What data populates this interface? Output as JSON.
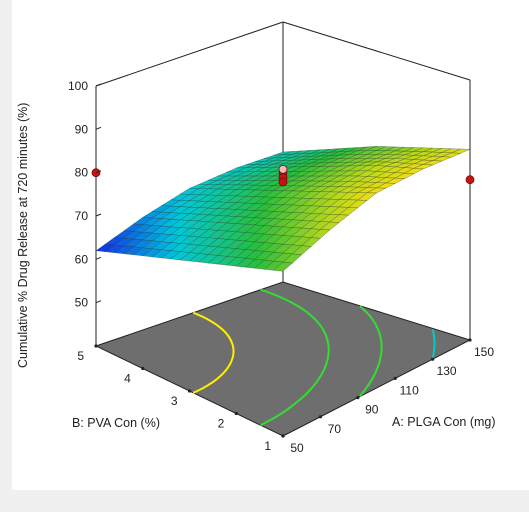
{
  "chart_data": {
    "type": "surface3d",
    "z_axis": {
      "label": "Cumulative % Drug Release at 720 minutes  (%)",
      "ticks": [
        "50",
        "60",
        "70",
        "80",
        "90",
        "100"
      ],
      "range": [
        40,
        100
      ]
    },
    "x_axis": {
      "label": "A: PLGA Con (mg)",
      "ticks": [
        "50",
        "70",
        "90",
        "110",
        "130",
        "150"
      ],
      "range": [
        50,
        150
      ]
    },
    "y_axis": {
      "label": "B: PVA Con (%)",
      "ticks": [
        "1",
        "2",
        "3",
        "4",
        "5"
      ],
      "range": [
        1,
        5
      ]
    },
    "surface_grid": {
      "x": [
        50,
        75,
        100,
        125,
        150
      ],
      "y": [
        1,
        2,
        3,
        4,
        5
      ],
      "z": [
        [
          78,
          82,
          85,
          85,
          84
        ],
        [
          74,
          78,
          81,
          82,
          81
        ],
        [
          70,
          74,
          77,
          78,
          78
        ],
        [
          66,
          70,
          73,
          74,
          74
        ],
        [
          62,
          66,
          69,
          70,
          70
        ]
      ]
    },
    "design_points": [
      {
        "x": 50,
        "y": 5,
        "z": 80,
        "above_surface": true
      },
      {
        "x": 100,
        "y": 3,
        "z": 81,
        "above_surface": true
      },
      {
        "x": 100,
        "y": 3,
        "z": 80,
        "above_surface": true
      },
      {
        "x": 100,
        "y": 3,
        "z": 79,
        "above_surface": true
      },
      {
        "x": 150,
        "y": 1,
        "z": 77,
        "above_surface": true
      },
      {
        "x": 150,
        "y": 5,
        "z": 66,
        "above_surface": false
      }
    ],
    "contour_colors": [
      "#ffee00",
      "#33dd33",
      "#00cccc",
      "#1a3aff"
    ],
    "grid": false
  }
}
